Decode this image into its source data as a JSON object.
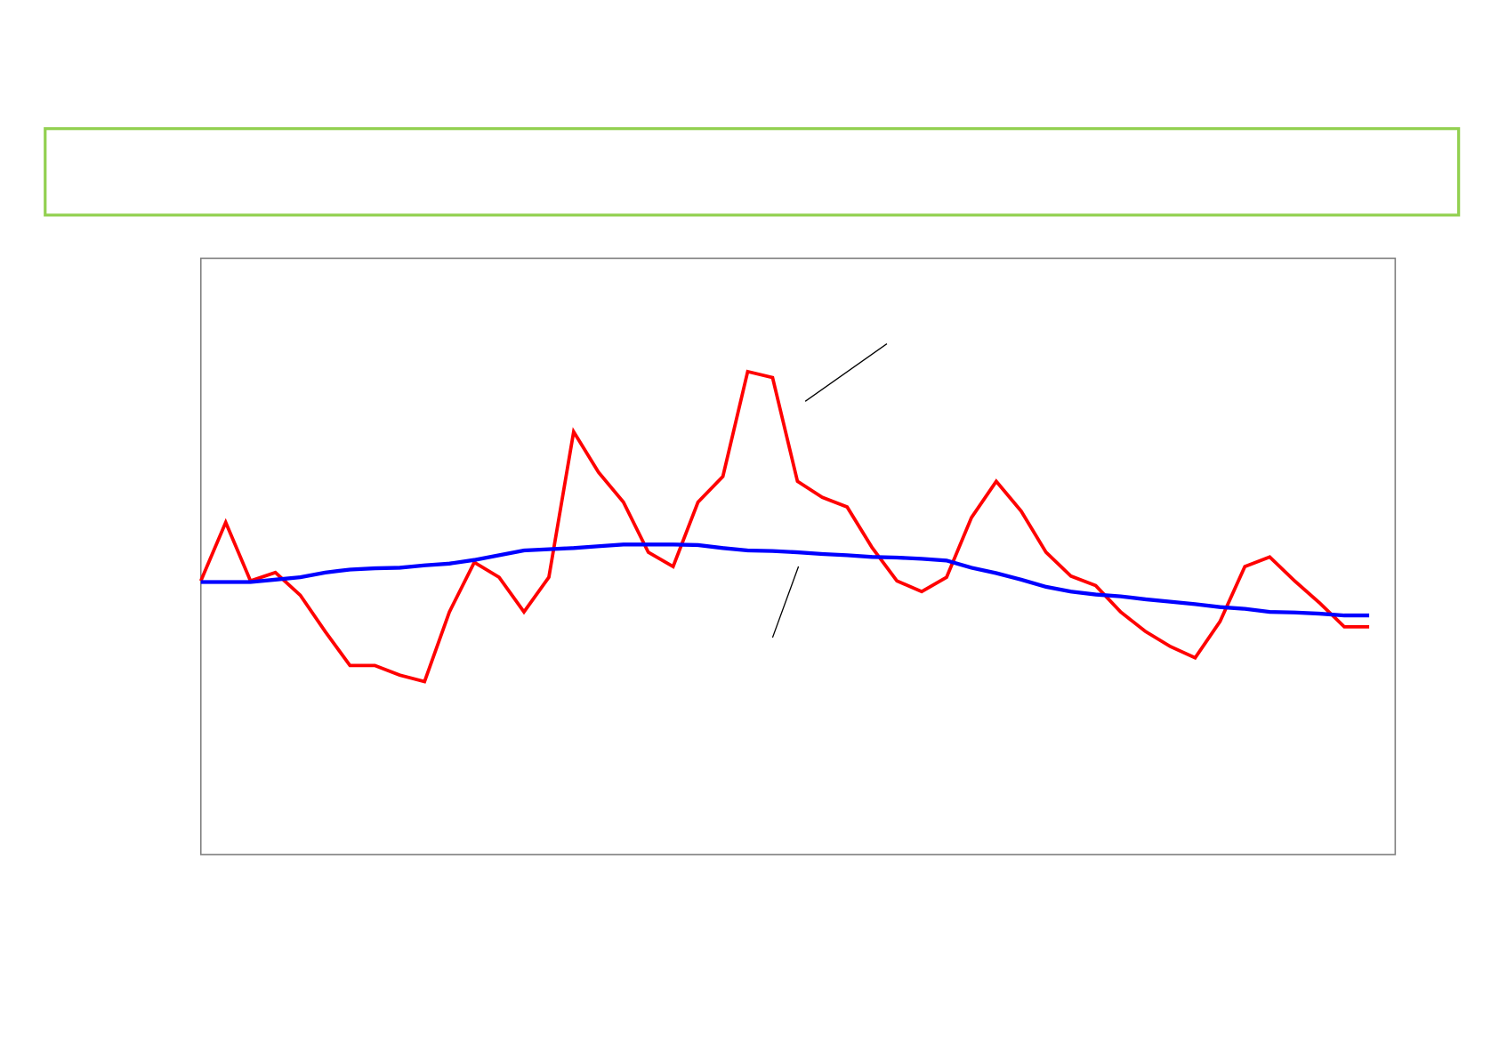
{
  "chart_data": {
    "type": "line",
    "title": "",
    "xlabel": "",
    "ylabel": "",
    "x": [
      0,
      1,
      2,
      3,
      4,
      5,
      6,
      7,
      8,
      9,
      10,
      11,
      12,
      13,
      14,
      15,
      16,
      17,
      18,
      19,
      20,
      21,
      22,
      23,
      24,
      25,
      26,
      27,
      28,
      29,
      30,
      31,
      32,
      33,
      34,
      35,
      36,
      37,
      38,
      39,
      40,
      41,
      42,
      43,
      44,
      45,
      46,
      47
    ],
    "xlim": [
      0,
      48
    ],
    "ylim": [
      0,
      100
    ],
    "grid": false,
    "legend": "none",
    "axes_labels_shown": false,
    "series": [
      {
        "color": "#ff0000",
        "values": [
          45.9,
          55.7,
          45.9,
          47.3,
          43.5,
          37.4,
          31.7,
          31.7,
          30.1,
          29.0,
          40.7,
          49.0,
          46.5,
          40.7,
          46.5,
          70.9,
          64.1,
          59.1,
          50.7,
          48.3,
          59.1,
          63.4,
          81.0,
          80.0,
          62.6,
          59.9,
          58.3,
          51.5,
          45.9,
          44.1,
          46.5,
          56.5,
          62.6,
          57.6,
          50.7,
          46.7,
          45.1,
          40.7,
          37.4,
          34.9,
          33.0,
          39.1,
          48.3,
          49.9,
          45.9,
          42.2,
          38.2,
          38.2
        ]
      },
      {
        "color": "#0000ff",
        "values": [
          45.7,
          45.7,
          45.7,
          46.1,
          46.5,
          47.3,
          47.8,
          48.0,
          48.1,
          48.5,
          48.8,
          49.4,
          50.2,
          51.0,
          51.2,
          51.4,
          51.7,
          52.0,
          52.0,
          52.0,
          51.9,
          51.4,
          51.0,
          50.9,
          50.7,
          50.4,
          50.2,
          49.9,
          49.8,
          49.6,
          49.3,
          48.1,
          47.2,
          46.1,
          44.9,
          44.1,
          43.6,
          43.3,
          42.8,
          42.4,
          42.0,
          41.5,
          41.2,
          40.7,
          40.6,
          40.4,
          40.1,
          40.1
        ]
      }
    ],
    "annotation_leaders": 2
  },
  "colors": {
    "title_box_border": "#92d050",
    "plot_border": "#808080",
    "leader_line": "#000000"
  }
}
